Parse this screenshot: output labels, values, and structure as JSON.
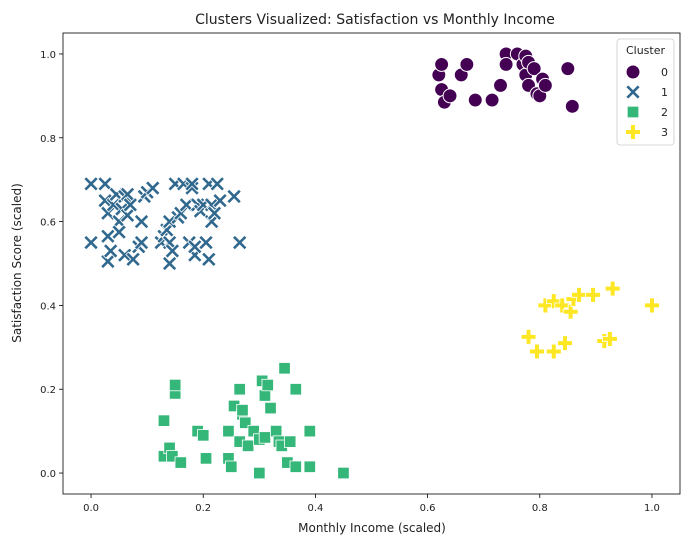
{
  "chart_data": {
    "type": "scatter",
    "title": "Clusters Visualized: Satisfaction vs Monthly Income",
    "xlabel": "Monthly Income (scaled)",
    "ylabel": "Satisfaction Score (scaled)",
    "xlim": [
      -0.05,
      1.05
    ],
    "ylim": [
      -0.05,
      1.05
    ],
    "xticks": [
      "0.0",
      "0.2",
      "0.4",
      "0.6",
      "0.8",
      "1.0"
    ],
    "yticks": [
      "0.0",
      "0.2",
      "0.4",
      "0.6",
      "0.8",
      "1.0"
    ],
    "grid": false,
    "legend": {
      "title": "Cluster",
      "position": "top-right"
    },
    "series": [
      {
        "name": "0",
        "marker": "circle",
        "color": "#440154",
        "points": [
          [
            0.62,
            0.95
          ],
          [
            0.625,
            0.975
          ],
          [
            0.625,
            0.915
          ],
          [
            0.63,
            0.885
          ],
          [
            0.64,
            0.9
          ],
          [
            0.66,
            0.95
          ],
          [
            0.67,
            0.975
          ],
          [
            0.685,
            0.89
          ],
          [
            0.715,
            0.89
          ],
          [
            0.73,
            0.925
          ],
          [
            0.74,
            1.0
          ],
          [
            0.74,
            0.975
          ],
          [
            0.76,
            1.0
          ],
          [
            0.77,
            0.975
          ],
          [
            0.775,
            0.995
          ],
          [
            0.775,
            0.95
          ],
          [
            0.78,
            0.925
          ],
          [
            0.78,
            0.98
          ],
          [
            0.79,
            0.965
          ],
          [
            0.795,
            0.905
          ],
          [
            0.8,
            0.9
          ],
          [
            0.805,
            0.94
          ],
          [
            0.81,
            0.925
          ],
          [
            0.85,
            0.965
          ],
          [
            0.858,
            0.875
          ]
        ]
      },
      {
        "name": "1",
        "marker": "x",
        "color": "#31688e",
        "points": [
          [
            0.0,
            0.69
          ],
          [
            0.0,
            0.55
          ],
          [
            0.025,
            0.69
          ],
          [
            0.025,
            0.65
          ],
          [
            0.03,
            0.62
          ],
          [
            0.03,
            0.565
          ],
          [
            0.03,
            0.505
          ],
          [
            0.035,
            0.53
          ],
          [
            0.04,
            0.64
          ],
          [
            0.045,
            0.665
          ],
          [
            0.05,
            0.6
          ],
          [
            0.05,
            0.575
          ],
          [
            0.055,
            0.63
          ],
          [
            0.06,
            0.52
          ],
          [
            0.06,
            0.66
          ],
          [
            0.065,
            0.665
          ],
          [
            0.065,
            0.615
          ],
          [
            0.07,
            0.64
          ],
          [
            0.075,
            0.51
          ],
          [
            0.085,
            0.54
          ],
          [
            0.09,
            0.55
          ],
          [
            0.09,
            0.6
          ],
          [
            0.095,
            0.66
          ],
          [
            0.1,
            0.67
          ],
          [
            0.11,
            0.68
          ],
          [
            0.125,
            0.55
          ],
          [
            0.13,
            0.565
          ],
          [
            0.135,
            0.58
          ],
          [
            0.14,
            0.55
          ],
          [
            0.14,
            0.6
          ],
          [
            0.14,
            0.5
          ],
          [
            0.145,
            0.53
          ],
          [
            0.15,
            0.69
          ],
          [
            0.155,
            0.61
          ],
          [
            0.16,
            0.62
          ],
          [
            0.165,
            0.69
          ],
          [
            0.17,
            0.64
          ],
          [
            0.175,
            0.55
          ],
          [
            0.18,
            0.68
          ],
          [
            0.18,
            0.69
          ],
          [
            0.185,
            0.52
          ],
          [
            0.185,
            0.54
          ],
          [
            0.19,
            0.64
          ],
          [
            0.195,
            0.625
          ],
          [
            0.2,
            0.64
          ],
          [
            0.205,
            0.55
          ],
          [
            0.21,
            0.69
          ],
          [
            0.21,
            0.51
          ],
          [
            0.215,
            0.64
          ],
          [
            0.215,
            0.6
          ],
          [
            0.22,
            0.62
          ],
          [
            0.225,
            0.69
          ],
          [
            0.23,
            0.65
          ],
          [
            0.255,
            0.66
          ],
          [
            0.265,
            0.55
          ]
        ]
      },
      {
        "name": "2",
        "marker": "square",
        "color": "#35b779",
        "points": [
          [
            0.13,
            0.125
          ],
          [
            0.13,
            0.04
          ],
          [
            0.14,
            0.06
          ],
          [
            0.145,
            0.04
          ],
          [
            0.15,
            0.19
          ],
          [
            0.15,
            0.21
          ],
          [
            0.16,
            0.025
          ],
          [
            0.19,
            0.1
          ],
          [
            0.2,
            0.09
          ],
          [
            0.205,
            0.035
          ],
          [
            0.245,
            0.1
          ],
          [
            0.245,
            0.035
          ],
          [
            0.25,
            0.015
          ],
          [
            0.255,
            0.16
          ],
          [
            0.265,
            0.2
          ],
          [
            0.265,
            0.075
          ],
          [
            0.27,
            0.14
          ],
          [
            0.27,
            0.15
          ],
          [
            0.275,
            0.12
          ],
          [
            0.28,
            0.065
          ],
          [
            0.29,
            0.1
          ],
          [
            0.3,
            0.08
          ],
          [
            0.3,
            0.0
          ],
          [
            0.305,
            0.22
          ],
          [
            0.31,
            0.085
          ],
          [
            0.31,
            0.185
          ],
          [
            0.315,
            0.21
          ],
          [
            0.32,
            0.155
          ],
          [
            0.33,
            0.1
          ],
          [
            0.335,
            0.075
          ],
          [
            0.34,
            0.065
          ],
          [
            0.345,
            0.25
          ],
          [
            0.35,
            0.025
          ],
          [
            0.355,
            0.075
          ],
          [
            0.365,
            0.2
          ],
          [
            0.365,
            0.015
          ],
          [
            0.39,
            0.1
          ],
          [
            0.39,
            0.015
          ],
          [
            0.45,
            0.0
          ]
        ]
      },
      {
        "name": "3",
        "marker": "plus",
        "color": "#fde725",
        "points": [
          [
            0.78,
            0.325
          ],
          [
            0.795,
            0.29
          ],
          [
            0.81,
            0.4
          ],
          [
            0.825,
            0.29
          ],
          [
            0.825,
            0.41
          ],
          [
            0.84,
            0.4
          ],
          [
            0.845,
            0.31
          ],
          [
            0.855,
            0.385
          ],
          [
            0.86,
            0.415
          ],
          [
            0.87,
            0.425
          ],
          [
            0.895,
            0.425
          ],
          [
            0.915,
            0.315
          ],
          [
            0.925,
            0.32
          ],
          [
            0.93,
            0.44
          ],
          [
            1.0,
            0.4
          ]
        ]
      }
    ]
  }
}
